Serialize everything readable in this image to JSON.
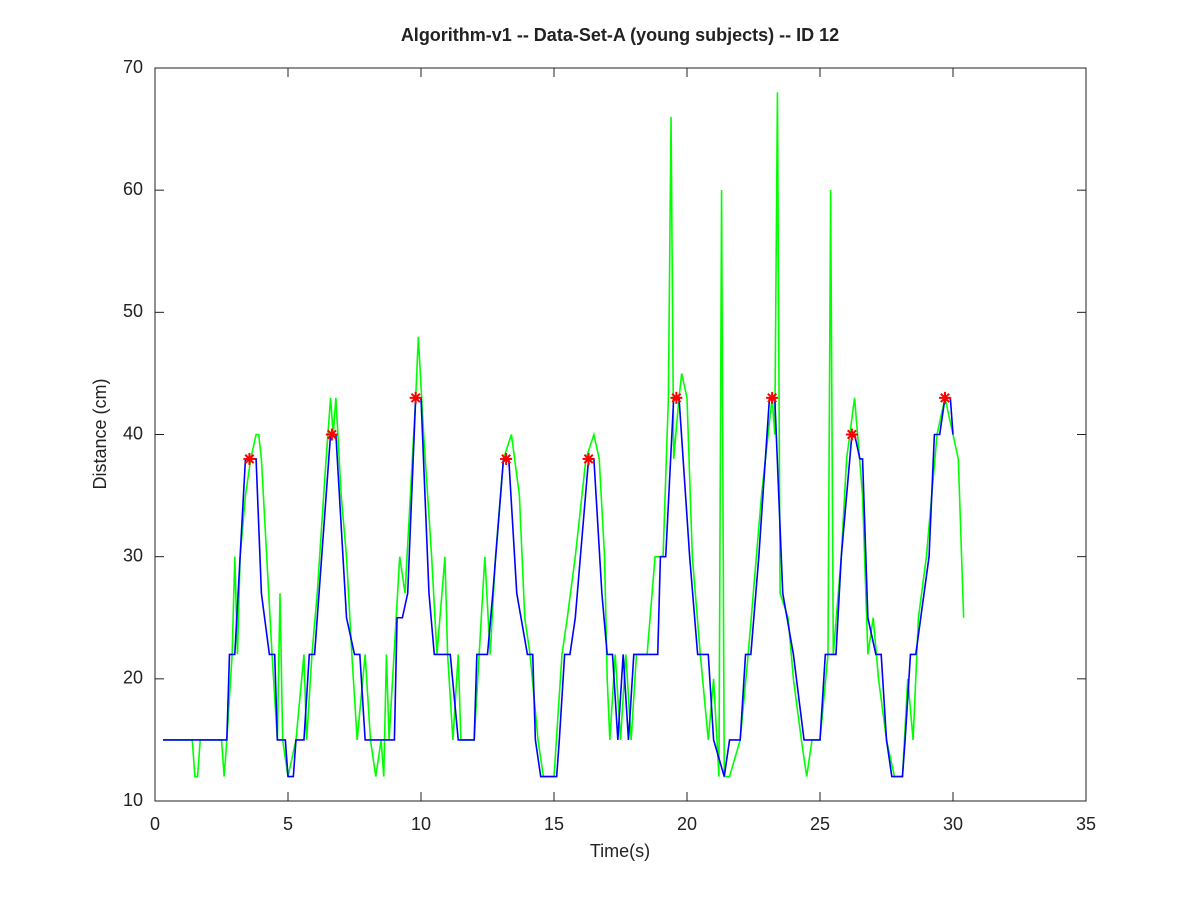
{
  "chart_data": {
    "type": "line",
    "title": "Algorithm-v1 -- Data-Set-A (young subjects) -- ID 12",
    "x_label": "Time(s)",
    "y_label": "Distance (cm)",
    "xlim": [
      0,
      35
    ],
    "xticks": [
      0,
      5,
      10,
      15,
      20,
      25,
      30,
      35
    ],
    "ylim": [
      10,
      70
    ],
    "yticks": [
      10,
      20,
      30,
      40,
      50,
      60,
      70
    ],
    "grid": false,
    "series": [
      {
        "color": "#00ff00",
        "style": "line",
        "x": [
          0.3,
          1.4,
          1.5,
          1.6,
          1.7,
          2.5,
          2.6,
          2.7,
          2.9,
          3.0,
          3.1,
          3.2,
          3.4,
          3.6,
          3.8,
          3.9,
          4.0,
          4.2,
          4.4,
          4.6,
          4.7,
          4.8,
          5.0,
          5.3,
          5.6,
          5.7,
          5.9,
          6.1,
          6.4,
          6.6,
          6.7,
          6.8,
          7.0,
          7.2,
          7.4,
          7.6,
          7.9,
          8.1,
          8.3,
          8.5,
          8.6,
          8.7,
          8.8,
          9.2,
          9.4,
          9.6,
          9.8,
          9.9,
          10.1,
          10.4,
          10.6,
          10.9,
          11.0,
          11.2,
          11.4,
          11.5,
          12.0,
          12.4,
          12.6,
          12.8,
          13.1,
          13.4,
          13.7,
          13.9,
          14.1,
          14.4,
          14.6,
          15.0,
          15.3,
          15.5,
          15.8,
          16.2,
          16.5,
          16.7,
          16.9,
          17.0,
          17.1,
          17.3,
          17.5,
          17.7,
          17.9,
          18.1,
          18.5,
          18.8,
          19.1,
          19.3,
          19.4,
          19.5,
          19.7,
          19.8,
          20.0,
          20.2,
          20.5,
          20.8,
          21.0,
          21.2,
          21.3,
          21.4,
          21.6,
          22.0,
          22.3,
          22.8,
          23.2,
          23.3,
          23.4,
          23.5,
          23.8,
          24.0,
          24.3,
          24.5,
          24.7,
          25.0,
          25.3,
          25.4,
          25.5,
          25.8,
          26.0,
          26.3,
          26.6,
          26.8,
          27.0,
          27.2,
          27.5,
          27.8,
          28.1,
          28.3,
          28.5,
          28.7,
          29.0,
          29.4,
          29.7,
          30.0,
          30.2,
          30.4
        ],
        "values": [
          15,
          15,
          12,
          12,
          15,
          15,
          12,
          15,
          22,
          30,
          22,
          30,
          35,
          38,
          40,
          40,
          38,
          30,
          22,
          15,
          27,
          15,
          12,
          15,
          22,
          15,
          22,
          27,
          37,
          43,
          40,
          43,
          35,
          30,
          22,
          15,
          22,
          15,
          12,
          15,
          12,
          22,
          15,
          30,
          27,
          35,
          43,
          48,
          40,
          30,
          22,
          30,
          22,
          15,
          22,
          15,
          15,
          30,
          22,
          30,
          38,
          40,
          35,
          25,
          22,
          15,
          12,
          12,
          22,
          25,
          30,
          38,
          40,
          38,
          30,
          20,
          15,
          22,
          15,
          22,
          15,
          22,
          22,
          30,
          30,
          43,
          66,
          38,
          43,
          45,
          43,
          30,
          22,
          15,
          20,
          12,
          60,
          12,
          12,
          15,
          22,
          35,
          43,
          40,
          68,
          27,
          25,
          20,
          15,
          12,
          15,
          15,
          22,
          60,
          22,
          30,
          38,
          43,
          35,
          22,
          25,
          20,
          15,
          12,
          12,
          20,
          15,
          25,
          30,
          40,
          43,
          40,
          38,
          25
        ]
      },
      {
        "color": "#0000ff",
        "style": "line",
        "x": [
          0.3,
          2.7,
          2.8,
          3.0,
          3.4,
          3.8,
          4.0,
          4.3,
          4.5,
          4.6,
          4.9,
          5.0,
          5.2,
          5.3,
          5.6,
          5.8,
          6.0,
          6.6,
          6.8,
          7.2,
          7.5,
          7.7,
          7.9,
          9.0,
          9.1,
          9.3,
          9.5,
          9.8,
          10.0,
          10.3,
          10.5,
          11.1,
          11.4,
          12.0,
          12.1,
          12.5,
          12.7,
          13.1,
          13.3,
          13.6,
          14.0,
          14.2,
          14.3,
          14.5,
          15.1,
          15.2,
          15.4,
          15.6,
          15.8,
          16.3,
          16.5,
          16.8,
          17.0,
          17.2,
          17.4,
          17.6,
          17.8,
          18.0,
          18.9,
          19.0,
          19.2,
          19.5,
          19.7,
          20.1,
          20.4,
          20.8,
          21.0,
          21.4,
          21.6,
          22.0,
          22.2,
          22.4,
          22.7,
          23.1,
          23.3,
          23.6,
          24.0,
          24.4,
          25.0,
          25.2,
          25.6,
          25.8,
          26.2,
          26.3,
          26.5,
          26.6,
          26.8,
          27.1,
          27.3,
          27.5,
          27.7,
          28.1,
          28.2,
          28.4,
          28.6,
          29.1,
          29.3,
          29.5,
          29.7,
          29.9,
          30.0
        ],
        "values": [
          15,
          15,
          22,
          22,
          38,
          38,
          27,
          22,
          22,
          15,
          15,
          12,
          12,
          15,
          15,
          22,
          22,
          40,
          40,
          25,
          22,
          22,
          15,
          15,
          25,
          25,
          27,
          43,
          43,
          27,
          22,
          22,
          15,
          15,
          22,
          22,
          27,
          38,
          38,
          27,
          22,
          22,
          15,
          12,
          12,
          15,
          22,
          22,
          25,
          38,
          38,
          27,
          22,
          22,
          15,
          22,
          15,
          22,
          22,
          30,
          30,
          43,
          43,
          30,
          22,
          22,
          15,
          12,
          15,
          15,
          22,
          22,
          30,
          43,
          43,
          27,
          22,
          15,
          15,
          22,
          22,
          30,
          40,
          40,
          38,
          38,
          25,
          22,
          22,
          15,
          12,
          12,
          15,
          22,
          22,
          30,
          40,
          40,
          43,
          43,
          40
        ]
      },
      {
        "color": "#ff0000",
        "style": "asterisk",
        "x": [
          3.55,
          6.65,
          9.8,
          13.2,
          16.3,
          19.6,
          23.2,
          26.2,
          29.7
        ],
        "values": [
          38,
          40,
          43,
          38,
          38,
          43,
          43,
          40,
          43
        ]
      }
    ]
  }
}
